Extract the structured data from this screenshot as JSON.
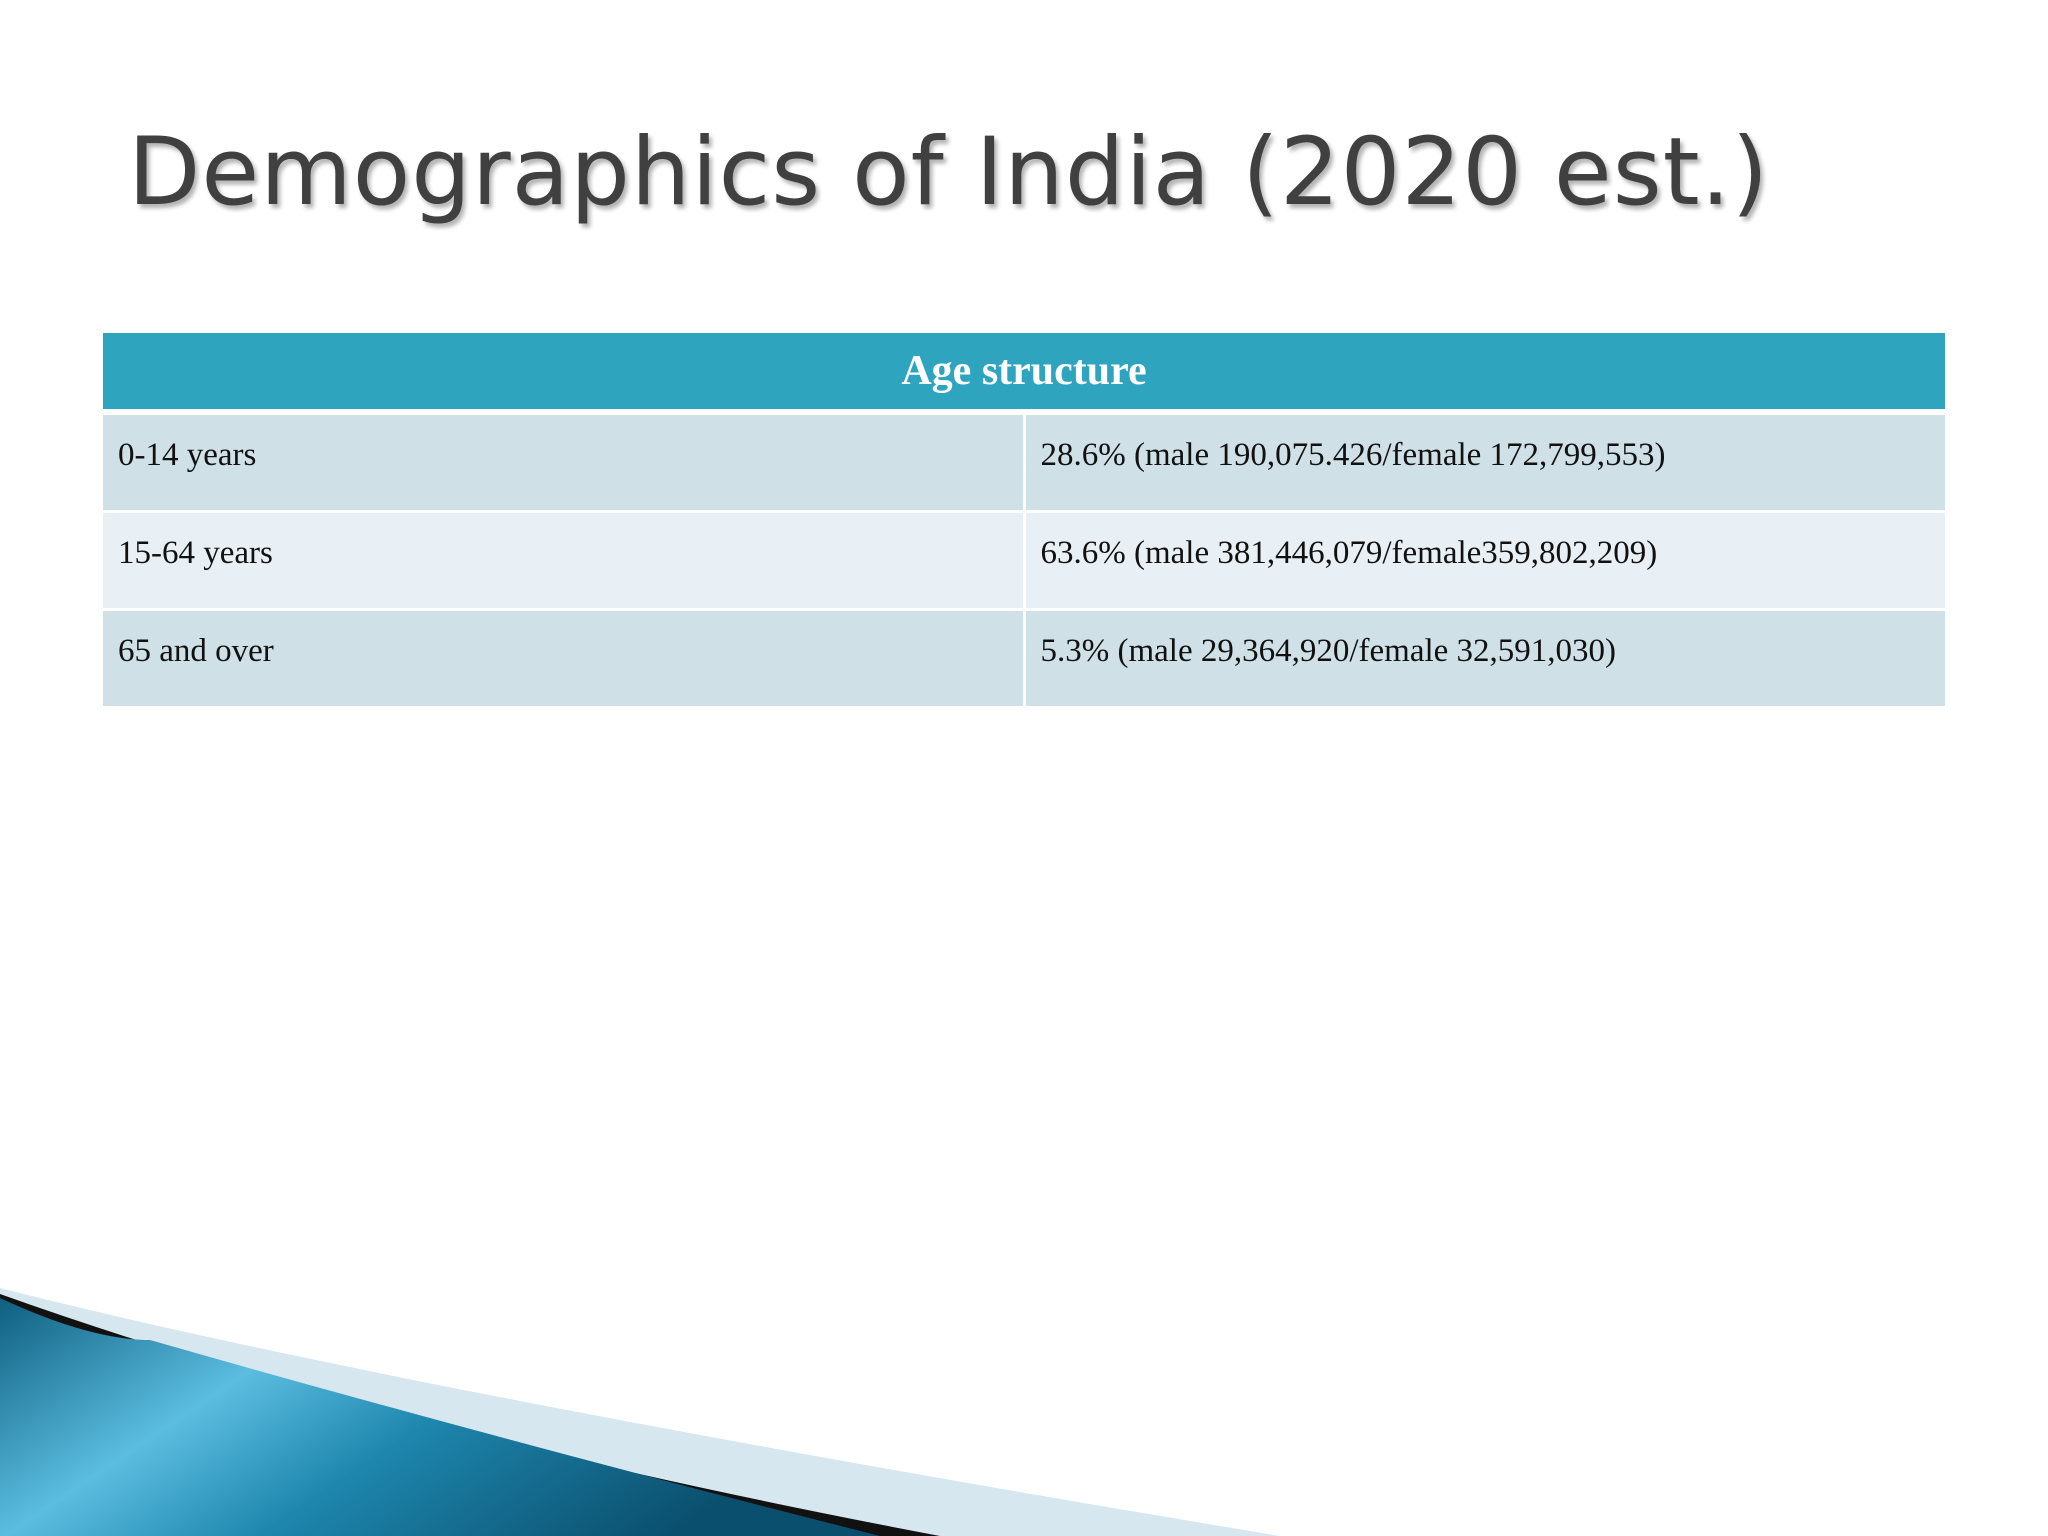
{
  "slide": {
    "title": "Demographics of India (2020 est.)"
  },
  "table": {
    "header": "Age structure",
    "rows": [
      {
        "label": "0-14 years",
        "value": "28.6% (male 190,075.426/female 172,799,553)"
      },
      {
        "label": "15-64 years",
        "value": "63.6% (male 381,446,079/female359,802,209)"
      },
      {
        "label": "65 and over",
        "value": "5.3% (male 29,364,920/female 32,591,030)"
      }
    ]
  },
  "colors": {
    "header_bg": "#2ea4bf",
    "row_odd_bg": "#cfe0e7",
    "row_even_bg": "#e8eff5",
    "title_text": "#404040",
    "swoosh_blue": "#1d7fa3",
    "swoosh_light": "#d7e7ef"
  },
  "decoration": {
    "corner": "blue-swoosh-graphic"
  }
}
